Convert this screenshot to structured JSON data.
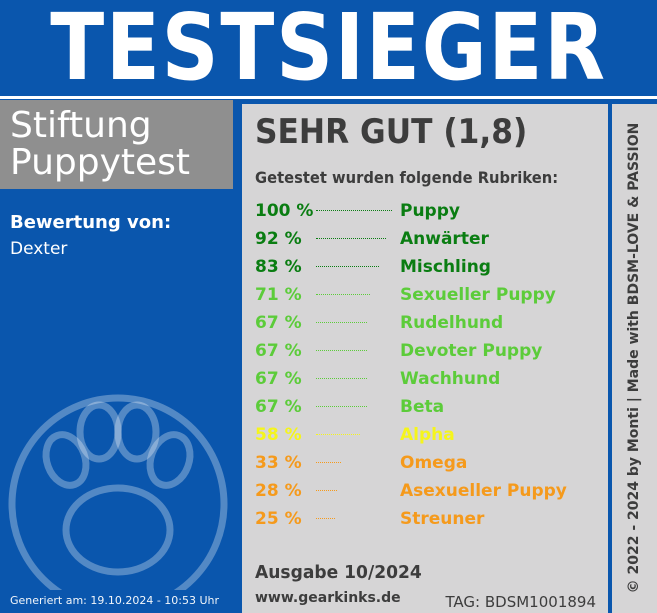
{
  "header": {
    "title": "TESTSIEGER"
  },
  "brand": {
    "line1": "Stiftung",
    "line2": "Puppytest"
  },
  "rating": {
    "label": "Bewertung von:",
    "name": "Dexter"
  },
  "grade": "SEHR GUT (1,8)",
  "categories_heading": "Getestet wurden folgende Rubriken:",
  "results": [
    {
      "percent": "100 %",
      "label": "Puppy",
      "value": 100,
      "color": "#0a7d12"
    },
    {
      "percent": "92 %",
      "label": "Anwärter",
      "value": 92,
      "color": "#0a7d12"
    },
    {
      "percent": "83 %",
      "label": "Mischling",
      "value": 83,
      "color": "#0a7d12"
    },
    {
      "percent": "71 %",
      "label": "Sexueller Puppy",
      "value": 71,
      "color": "#5ccc3a"
    },
    {
      "percent": "67 %",
      "label": "Rudelhund",
      "value": 67,
      "color": "#5ccc3a"
    },
    {
      "percent": "67 %",
      "label": "Devoter Puppy",
      "value": 67,
      "color": "#5ccc3a"
    },
    {
      "percent": "67 %",
      "label": "Wachhund",
      "value": 67,
      "color": "#5ccc3a"
    },
    {
      "percent": "67 %",
      "label": "Beta",
      "value": 67,
      "color": "#5ccc3a"
    },
    {
      "percent": "58 %",
      "label": "Alpha",
      "value": 58,
      "color": "#f5f51c"
    },
    {
      "percent": "33 %",
      "label": "Omega",
      "value": 33,
      "color": "#f59a1c"
    },
    {
      "percent": "28 %",
      "label": "Asexueller Puppy",
      "value": 28,
      "color": "#f59a1c"
    },
    {
      "percent": "25 %",
      "label": "Streuner",
      "value": 25,
      "color": "#f59a1c"
    }
  ],
  "issue": "Ausgabe 10/2024",
  "website": "www.gearkinks.de",
  "tag": "TAG: BDSM1001894",
  "generated": "Generiert am: 19.10.2024 - 10:53 Uhr",
  "copyright": "© 2022 - 2024 by Monti | Made with BDSM-LOVE & PASSION",
  "colors": {
    "brand_blue": "#0a56ad",
    "panel_gray": "#d6d5d6",
    "brand_box_gray": "#8f8f8f",
    "text_dark": "#3d3d3d"
  },
  "icons": {
    "paw": "paw-icon"
  }
}
